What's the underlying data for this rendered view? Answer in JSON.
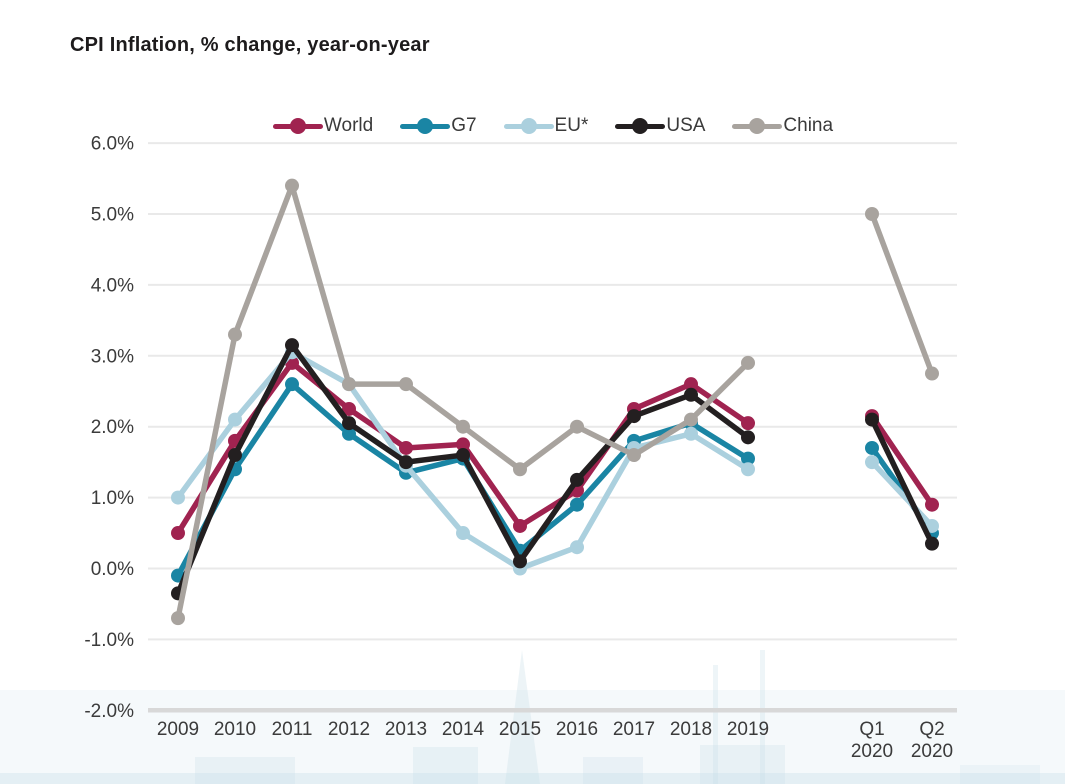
{
  "title": "CPI Inflation, % change, year-on-year",
  "chart_data": {
    "type": "line",
    "title": "CPI Inflation, % change, year-on-year",
    "categories": [
      "2009",
      "2010",
      "2011",
      "2012",
      "2013",
      "2014",
      "2015",
      "2016",
      "2017",
      "2018",
      "2019",
      "Q1 2020",
      "Q2 2020"
    ],
    "series": [
      {
        "name": "World",
        "color": "#a02350",
        "values": [
          0.5,
          1.8,
          2.9,
          2.25,
          1.7,
          1.75,
          0.6,
          1.1,
          2.25,
          2.6,
          2.05,
          2.15,
          0.9
        ]
      },
      {
        "name": "G7",
        "color": "#1a85a4",
        "values": [
          -0.1,
          1.4,
          2.6,
          1.9,
          1.35,
          1.55,
          0.25,
          0.9,
          1.8,
          2.05,
          1.55,
          1.7,
          0.5
        ]
      },
      {
        "name": "EU*",
        "color": "#abd0de",
        "values": [
          1.0,
          2.1,
          3.05,
          2.6,
          1.45,
          0.5,
          0.0,
          0.3,
          1.7,
          1.9,
          1.4,
          1.5,
          0.6
        ]
      },
      {
        "name": "USA",
        "color": "#231f20",
        "values": [
          -0.35,
          1.6,
          3.15,
          2.05,
          1.5,
          1.6,
          0.1,
          1.25,
          2.15,
          2.45,
          1.85,
          2.1,
          0.35
        ]
      },
      {
        "name": "China",
        "color": "#a8a39e",
        "values": [
          -0.7,
          3.3,
          5.4,
          2.6,
          2.6,
          2.0,
          1.4,
          2.0,
          1.6,
          2.1,
          2.9,
          5.0,
          2.75
        ]
      }
    ],
    "ylim": [
      -2.0,
      6.0
    ],
    "ytick_step": 1.0,
    "ytick_values": [
      6,
      5,
      4,
      3,
      2,
      1,
      0,
      -1,
      -2
    ],
    "ytick_labels": [
      "6.0%",
      "5.0%",
      "4.0%",
      "3.0%",
      "2.0%",
      "1.0%",
      "0.0%",
      "-1.0%",
      "-2.0%"
    ],
    "xlabel": "",
    "ylabel": "",
    "grid": true,
    "legend_position": "top",
    "line_segments": [
      [
        0,
        10
      ],
      [
        11,
        12
      ]
    ]
  },
  "style": {
    "grid_color": "#e9e9e9",
    "axis_line_color": "#d8d8d8",
    "tick_label_color": "#3b3b3b"
  }
}
